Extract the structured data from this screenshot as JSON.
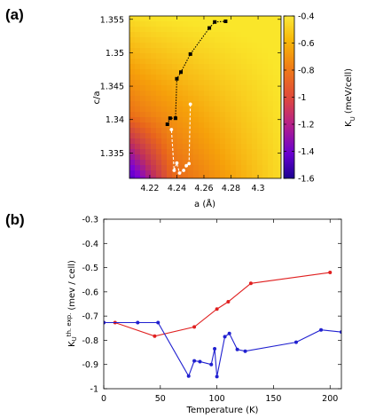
{
  "chart_data": [
    {
      "panel": "(a)",
      "type": "heatmap",
      "xlabel": "a (Å)",
      "ylabel": "c/a",
      "xlim": [
        4.205,
        4.317
      ],
      "ylim": [
        1.3312,
        1.3555
      ],
      "xticks": [
        "4.22",
        "4.24",
        "4.26",
        "4.28",
        "4.3"
      ],
      "yticks": [
        "1.335",
        "1.34",
        "1.345",
        "1.35",
        "1.355"
      ],
      "colorbar": {
        "label": "K_U (meV/cell)",
        "range": [
          -1.6,
          -0.4
        ],
        "ticks": [
          "-0.4",
          "-0.6",
          "-0.8",
          "-1",
          "-1.2",
          "-1.4",
          "-1.6"
        ],
        "palette": [
          "#3000b0",
          "#7a00d8",
          "#c0305a",
          "#e8641c",
          "#f6a10a",
          "#fae62a"
        ]
      },
      "grid": false,
      "series": [
        {
          "color": "#000000",
          "style": "dotted line with square markers",
          "points": [
            [
              4.233,
              1.3393
            ],
            [
              4.235,
              1.3402
            ],
            [
              4.239,
              1.3402
            ],
            [
              4.24,
              1.3461
            ],
            [
              4.243,
              1.3471
            ],
            [
              4.25,
              1.3498
            ],
            [
              4.264,
              1.3537
            ],
            [
              4.268,
              1.3546
            ],
            [
              4.276,
              1.3547
            ]
          ]
        },
        {
          "color": "#ffffff",
          "style": "dashed line with round markers",
          "points": [
            [
              4.25,
              1.3423
            ],
            [
              4.249,
              1.3334
            ],
            [
              4.247,
              1.3331
            ],
            [
              4.245,
              1.3324
            ],
            [
              4.242,
              1.332
            ],
            [
              4.24,
              1.3335
            ],
            [
              4.238,
              1.3324
            ],
            [
              4.236,
              1.3385
            ]
          ]
        }
      ]
    },
    {
      "panel": "(b)",
      "type": "line",
      "xlabel": "Temperature (K)",
      "ylabel": "K_U^{th. exp.} (mev / cell)",
      "ylabel_main": "K",
      "ylabel_sub": "U",
      "ylabel_sup": "th. exp.",
      "ylabel_rest": "(mev / cell)",
      "xlim": [
        0,
        210
      ],
      "ylim": [
        -1,
        -0.3
      ],
      "xticks": [
        "0",
        "50",
        "100",
        "150",
        "200"
      ],
      "yticks": [
        "-0.3",
        "-0.4",
        "-0.5",
        "-0.6",
        "-0.7",
        "-0.8",
        "-0.9",
        "-1"
      ],
      "grid": false,
      "series": [
        {
          "color": "#e02020",
          "x": [
            0,
            10,
            45,
            80,
            100,
            110,
            130,
            200
          ],
          "y": [
            -0.727,
            -0.727,
            -0.783,
            -0.745,
            -0.671,
            -0.641,
            -0.565,
            -0.52
          ]
        },
        {
          "color": "#2020d0",
          "x": [
            0,
            30,
            48,
            75,
            80,
            85,
            95,
            98,
            100,
            107,
            111,
            118,
            125,
            170,
            192,
            210
          ],
          "y": [
            -0.727,
            -0.727,
            -0.727,
            -0.948,
            -0.885,
            -0.888,
            -0.9,
            -0.835,
            -0.95,
            -0.785,
            -0.772,
            -0.838,
            -0.845,
            -0.808,
            -0.757,
            -0.766
          ]
        }
      ]
    }
  ]
}
